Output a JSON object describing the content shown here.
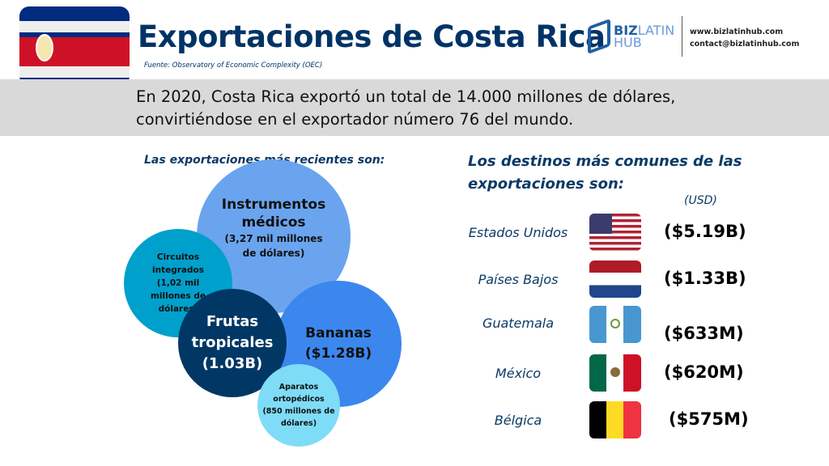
{
  "header": {
    "title": "Exportaciones de Costa Rica",
    "source": "Fuente: Observatory of Economic Complexity (OEC)",
    "logo_text": "BIZLATIN HUB",
    "website": "www.bizlatinhub.com",
    "email": "contact@bizlatinhub.com"
  },
  "summary": {
    "line1": "En 2020, Costa Rica exportó un total de 14.000 millones de dólares,",
    "line2": "convirtiéndose en el exportador número 76 del mundo."
  },
  "exports": {
    "heading": "Las exportaciones más recientes son:",
    "items": [
      {
        "title": "Instrumentos médicos",
        "value": "(3,27 mil millones de dólares)",
        "color": "#6aa4ee"
      },
      {
        "title": "Circuitos integrados",
        "value": "(1,02 mil millones de dólares)",
        "color": "#00a0cc"
      },
      {
        "title": "Frutas tropicales",
        "value": "(1.03B)",
        "color": "#003764"
      },
      {
        "title": "Bananas",
        "value": "($1.28B)",
        "color": "#3b87ee"
      },
      {
        "title": "Aparatos ortopédicos",
        "value": "(850 millones de dólares)",
        "color": "#7fdcf7"
      }
    ]
  },
  "destinations": {
    "heading_line1": "Los destinos más comunes de las",
    "heading_line2": "exportaciones son:",
    "unit": "(USD)",
    "items": [
      {
        "country": "Estados Unidos",
        "value": "($5.19B)",
        "flag": "usa-flag"
      },
      {
        "country": "Países Bajos",
        "value": "($1.33B)",
        "flag": "netherlands-flag"
      },
      {
        "country": "Guatemala",
        "value": "($633M)",
        "flag": "guatemala-flag"
      },
      {
        "country": "México",
        "value": "($620M)",
        "flag": "mexico-flag"
      },
      {
        "country": "Bélgica",
        "value": "($575M)",
        "flag": "belgium-flag"
      }
    ]
  }
}
